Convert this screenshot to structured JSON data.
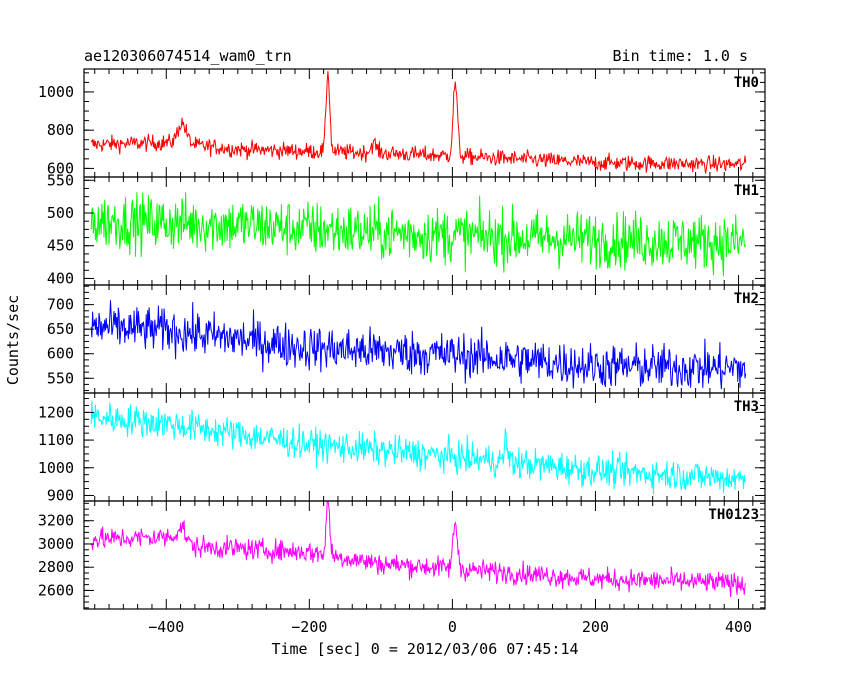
{
  "chart_data": {
    "type": "line",
    "title": "ae120306074514_wam0_trn",
    "bin_time_label": "Bin time: 1.0 s",
    "xlabel": "Time [sec] 0 = 2012/03/06 07:45:14",
    "ylabel": "Counts/sec",
    "xlim": [
      -515,
      437
    ],
    "x_ticks": [
      -400,
      -200,
      0,
      200,
      400
    ],
    "x_tick_labels": [
      "−400",
      "−200",
      "0",
      "200",
      "400"
    ],
    "x_range_data": [
      -505,
      410
    ],
    "bin_size": 1.0,
    "grid": false,
    "panels": [
      {
        "name": "TH0",
        "color": "#ff0000",
        "ylim": [
          555,
          1120
        ],
        "y_ticks": [
          600,
          800,
          1000
        ],
        "y_tick_labels": [
          "600",
          "800",
          "1000"
        ],
        "baseline": [
          [
            -505,
            725
          ],
          [
            -400,
            735
          ],
          [
            -300,
            700
          ],
          [
            -100,
            680
          ],
          [
            0,
            665
          ],
          [
            200,
            630
          ],
          [
            410,
            620
          ]
        ],
        "noise": 30,
        "flares": [
          {
            "t": -378,
            "amp": 110,
            "width": 6
          },
          {
            "t": -174,
            "amp": 420,
            "width": 2.5
          },
          {
            "t": -110,
            "amp": 50,
            "width": 4
          },
          {
            "t": 4,
            "amp": 380,
            "width": 3
          }
        ]
      },
      {
        "name": "TH1",
        "color": "#00ff00",
        "ylim": [
          390,
          555
        ],
        "y_ticks": [
          400,
          450,
          500,
          550
        ],
        "y_tick_labels": [
          "400",
          "450",
          "500",
          "550"
        ],
        "baseline": [
          [
            -505,
            488
          ],
          [
            -300,
            482
          ],
          [
            -100,
            470
          ],
          [
            100,
            462
          ],
          [
            410,
            455
          ]
        ],
        "noise": 30,
        "flares": []
      },
      {
        "name": "TH2",
        "color": "#0000ff",
        "ylim": [
          520,
          740
        ],
        "y_ticks": [
          550,
          600,
          650,
          700
        ],
        "y_tick_labels": [
          "550",
          "600",
          "650",
          "700"
        ],
        "baseline": [
          [
            -505,
            655
          ],
          [
            -400,
            648
          ],
          [
            -200,
            612
          ],
          [
            0,
            598
          ],
          [
            200,
            575
          ],
          [
            410,
            570
          ]
        ],
        "noise": 32,
        "flares": []
      },
      {
        "name": "TH3",
        "color": "#00ffff",
        "ylim": [
          880,
          1270
        ],
        "y_ticks": [
          900,
          1000,
          1100,
          1200
        ],
        "y_tick_labels": [
          "900",
          "1000",
          "1100",
          "1200"
        ],
        "baseline": [
          [
            -505,
            1185
          ],
          [
            -400,
            1160
          ],
          [
            -200,
            1085
          ],
          [
            0,
            1040
          ],
          [
            200,
            990
          ],
          [
            410,
            960
          ]
        ],
        "noise": 40,
        "flares": [
          {
            "t": 75,
            "amp": 90,
            "width": 2
          }
        ]
      },
      {
        "name": "TH0123",
        "color": "#ff00ff",
        "ylim": [
          2440,
          3370
        ],
        "y_ticks": [
          2600,
          2800,
          3000,
          3200
        ],
        "y_tick_labels": [
          "2600",
          "2800",
          "3000",
          "3200"
        ],
        "baseline": [
          [
            -505,
            3040
          ],
          [
            -390,
            3060
          ],
          [
            -370,
            2980
          ],
          [
            -200,
            2930
          ],
          [
            -100,
            2830
          ],
          [
            0,
            2790
          ],
          [
            200,
            2700
          ],
          [
            410,
            2660
          ]
        ],
        "noise": 65,
        "flares": [
          {
            "t": -378,
            "amp": 130,
            "width": 6
          },
          {
            "t": -174,
            "amp": 460,
            "width": 2.5
          },
          {
            "t": 4,
            "amp": 400,
            "width": 3
          }
        ]
      }
    ]
  }
}
